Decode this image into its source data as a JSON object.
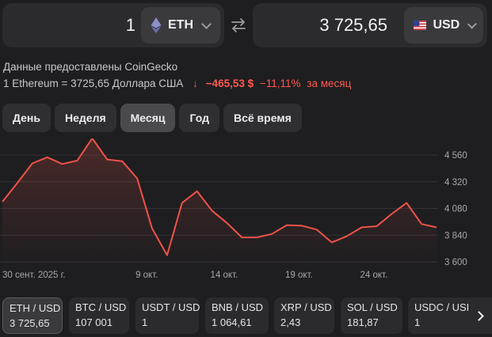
{
  "converter": {
    "from": {
      "amount": "1",
      "currency": "ETH"
    },
    "to": {
      "amount": "3 725,65",
      "currency": "USD"
    }
  },
  "source_text": "Данные предоставлены CoinGecko",
  "rate": {
    "text": "1 Ethereum = 3725,65 Доллара США",
    "change_arrow": "↓",
    "change_abs": "−465,53 $",
    "change_pct": "−11,11%",
    "change_period": "за месяц"
  },
  "periods": [
    {
      "label": "День"
    },
    {
      "label": "Неделя"
    },
    {
      "label": "Месяц",
      "active": true
    },
    {
      "label": "Год"
    },
    {
      "label": "Всё время"
    }
  ],
  "chart_data": {
    "type": "line",
    "x_ticks": [
      "30 сент. 2025 г.",
      "9 окт.",
      "14 окт.",
      "19 окт.",
      "24 окт."
    ],
    "y_ticks": [
      "4 560",
      "4 320",
      "4 080",
      "3 840",
      "3 600"
    ],
    "ylim": [
      3600,
      4560
    ],
    "line_color": "#f0524a",
    "series": [
      {
        "x": [
          "30.09",
          "01.10",
          "02.10",
          "03.10",
          "04.10",
          "05.10",
          "06.10",
          "07.10",
          "08.10",
          "09.10",
          "10.10",
          "11.10",
          "12.10",
          "13.10",
          "14.10",
          "15.10",
          "16.10",
          "17.10",
          "18.10",
          "19.10",
          "20.10",
          "21.10",
          "22.10",
          "23.10",
          "24.10",
          "25.10",
          "26.10",
          "27.10",
          "28.10",
          "29.10"
        ],
        "values": [
          4140,
          4310,
          4485,
          4540,
          4480,
          4510,
          4710,
          4520,
          4505,
          4350,
          3900,
          3660,
          4130,
          4235,
          4060,
          3950,
          3820,
          3820,
          3850,
          3930,
          3925,
          3890,
          3775,
          3830,
          3910,
          3920,
          4030,
          4130,
          3940,
          3910
        ]
      }
    ]
  },
  "pairs": [
    {
      "name": "ETH / USD",
      "value": "3 725,65",
      "active": true
    },
    {
      "name": "BTC / USD",
      "value": "107 001"
    },
    {
      "name": "USDT / USD",
      "value": "1"
    },
    {
      "name": "BNB / USD",
      "value": "1 064,61"
    },
    {
      "name": "XRP / USD",
      "value": "2,43"
    },
    {
      "name": "SOL / USD",
      "value": "181,87"
    },
    {
      "name": "USDC / USD",
      "value": "1"
    }
  ]
}
